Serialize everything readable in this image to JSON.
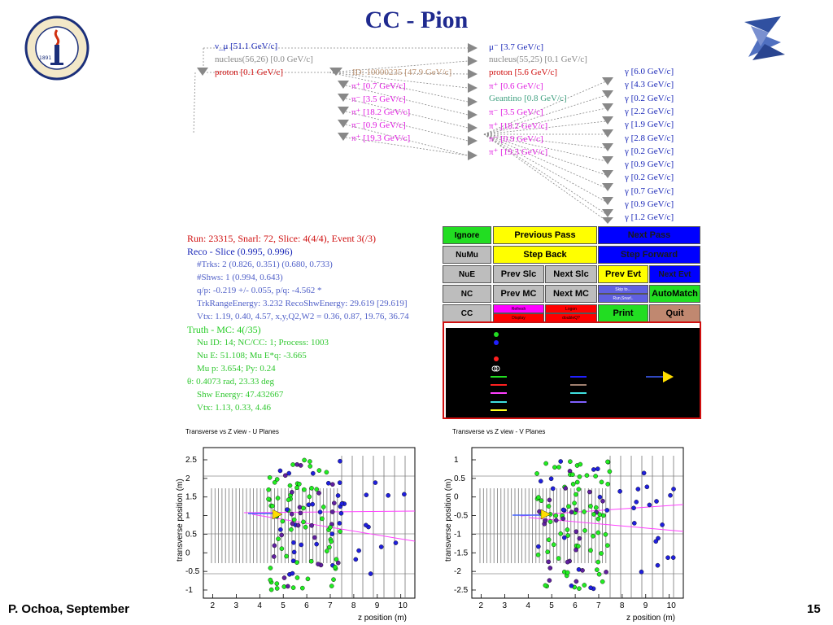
{
  "slide": {
    "title": "CC - Pion",
    "footer_left": "P. Ochoa, September",
    "page_number": "15"
  },
  "logos": {
    "left_text": "CALIFORNIA INSTITUTE OF TECHNOLOGY",
    "left_year": "1891"
  },
  "tree": {
    "col1": [
      {
        "label": "ν_μ [51.1 GeV/c]",
        "color": "#1a28b8"
      },
      {
        "label": "nucleus(56,26) [0.0 GeV/c]",
        "color": "#888888"
      },
      {
        "label": "proton [0.1 GeV/c]",
        "color": "#d01010"
      }
    ],
    "col2": [
      {
        "label": "ID: 10000235 [47.9 GeV/c]",
        "color": "#b89070"
      },
      {
        "label": "π⁺ [0.7 GeV/c]",
        "color": "#e020e0"
      },
      {
        "label": "π⁻ [3.5 GeV/c]",
        "color": "#e020e0"
      },
      {
        "label": "π⁺ [18.2 GeV/c]",
        "color": "#e020e0"
      },
      {
        "label": "π⁻ [0.9 GeV/c]",
        "color": "#e020e0"
      },
      {
        "label": "π⁺ [19.3 GeV/c]",
        "color": "#e020e0"
      }
    ],
    "col3": [
      {
        "label": "μ⁻ [3.7 GeV/c]",
        "color": "#1a28b8"
      },
      {
        "label": "nucleus(55,25) [0.1 GeV/c]",
        "color": "#888888"
      },
      {
        "label": "proton [5.6 GeV/c]",
        "color": "#d01010"
      },
      {
        "label": "π⁺ [0.6 GeV/c]",
        "color": "#e020e0"
      },
      {
        "label": "Geantino [0.8 GeV/c]",
        "color": "#40a080"
      },
      {
        "label": "π⁻ [3.5 GeV/c]",
        "color": "#e020e0"
      },
      {
        "label": "π⁺ [18.2 GeV/c]",
        "color": "#e020e0"
      },
      {
        "label": "π⁻ [0.9 GeV/c]",
        "color": "#e020e0"
      },
      {
        "label": "π⁺ [19.3 GeV/c]",
        "color": "#e020e0"
      }
    ],
    "col4": [
      {
        "label": "γ [6.0 GeV/c]"
      },
      {
        "label": "γ [4.3 GeV/c]"
      },
      {
        "label": "γ [0.2 GeV/c]"
      },
      {
        "label": "γ [2.2 GeV/c]"
      },
      {
        "label": "γ [1.9 GeV/c]"
      },
      {
        "label": "γ [2.8 GeV/c]"
      },
      {
        "label": "γ [0.2 GeV/c]"
      },
      {
        "label": "γ [0.9 GeV/c]"
      },
      {
        "label": "γ [0.2 GeV/c]"
      },
      {
        "label": "γ [0.7 GeV/c]"
      },
      {
        "label": "γ [0.9 GeV/c]"
      },
      {
        "label": "γ [1.2 GeV/c]"
      }
    ]
  },
  "info": {
    "run": "Run: 23315, Snarl: 72, Slice: 4(4/4), Event 3(/3)",
    "reco": "Reco - Slice (0.995, 0.996)",
    "reco_lines": [
      "#Trks: 2 (0.826, 0.351) (0.680, 0.733)",
      "#Shws: 1 (0.994, 0.643)",
      "q/p: -0.219 +/- 0.055,  p/q: -4.562 *",
      "TrkRangeEnergy: 3.232     RecoShwEnergy: 29.619 [29.619]",
      "Vtx: 1.19, 0.40, 4.57,  x,y,Q2,W2  = 0.36, 0.87, 19.76, 36.74"
    ],
    "truth": "Truth - MC: 4(/35)",
    "truth_lines": [
      "Nu ID: 14;  NC/CC: 1;  Process: 1003",
      "Nu E: 51.108;  Mu E*q: -3.665",
      "Mu p: 3.654;  Py: 0.24",
      "θ: 0.4073 rad, 23.33 deg",
      "Shw Energy: 47.432667",
      "Vtx: 1.13, 0.33, 4.46"
    ]
  },
  "buttons": {
    "ignore": "Ignore",
    "numu": "NuMu",
    "nue": "NuE",
    "nc": "NC",
    "cc": "CC",
    "prev_pass": "Previous Pass",
    "step_back": "Step Back",
    "prev_slc": "Prev Slc",
    "next_slc": "Next Slc",
    "prev_mc": "Prev MC",
    "next_mc": "Next MC",
    "refresh": "Refresh",
    "logon": "Logon",
    "display": "Display",
    "quit_small": "doubleQ?",
    "next_pass": "Next Pass",
    "step_forward": "Step Forward",
    "prev_evt": "Prev Evt",
    "next_evt": "Next Evt",
    "skip_to": "Skip to...",
    "run_snarl": "Run,Snarl..",
    "automatch": "AutoMatch",
    "print": "Print",
    "quit": "Quit"
  },
  "colors": {
    "green_btn": "#22dd22",
    "yellow_btn": "#ffff00",
    "blue_btn": "#0000ff",
    "gray_btn": "#bdbdbd",
    "magenta_btn": "#ff00ff",
    "red_btn": "#ff0000",
    "quit_btn": "#c08870"
  },
  "plots": {
    "u": {
      "title": "Transverse vs Z view - U Planes",
      "xlabel": "z position (m)",
      "ylabel": "transverse position (m)",
      "xticks": [
        "2",
        "3",
        "4",
        "5",
        "6",
        "7",
        "8",
        "9",
        "10"
      ],
      "yticks": [
        "2.5",
        "2",
        "1.5",
        "1",
        "0.5",
        "0",
        "-0.5",
        "-1"
      ]
    },
    "v": {
      "title": "Transverse vs Z view - V Planes",
      "xlabel": "z position (m)",
      "ylabel": "transverse position (m)",
      "xticks": [
        "2",
        "3",
        "4",
        "5",
        "6",
        "7",
        "8",
        "9",
        "10"
      ],
      "yticks": [
        "1",
        "0.5",
        "0",
        "-0.5",
        "-1",
        "-1.5",
        "-2",
        "-2.5"
      ]
    }
  }
}
